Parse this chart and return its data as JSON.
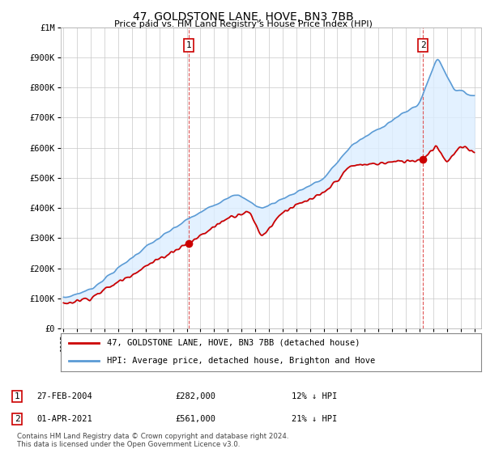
{
  "title": "47, GOLDSTONE LANE, HOVE, BN3 7BB",
  "subtitle": "Price paid vs. HM Land Registry's House Price Index (HPI)",
  "ylabel_ticks": [
    "£0",
    "£100K",
    "£200K",
    "£300K",
    "£400K",
    "£500K",
    "£600K",
    "£700K",
    "£800K",
    "£900K",
    "£1M"
  ],
  "ytick_vals": [
    0,
    100000,
    200000,
    300000,
    400000,
    500000,
    600000,
    700000,
    800000,
    900000,
    1000000
  ],
  "ylim": [
    0,
    1000000
  ],
  "xlim_start": 1994.8,
  "xlim_end": 2025.5,
  "hpi_color": "#5b9bd5",
  "price_color": "#cc0000",
  "fill_color": "#ddeeff",
  "grid_color": "#c8c8c8",
  "background_color": "#ffffff",
  "legend_label_price": "47, GOLDSTONE LANE, HOVE, BN3 7BB (detached house)",
  "legend_label_hpi": "HPI: Average price, detached house, Brighton and Hove",
  "annotation1_label": "1",
  "annotation1_text": "27-FEB-2004",
  "annotation1_price": "£282,000",
  "annotation1_hpi": "12% ↓ HPI",
  "annotation2_label": "2",
  "annotation2_text": "01-APR-2021",
  "annotation2_price": "£561,000",
  "annotation2_hpi": "21% ↓ HPI",
  "footnote": "Contains HM Land Registry data © Crown copyright and database right 2024.\nThis data is licensed under the Open Government Licence v3.0.",
  "marker1_x": 2004.15,
  "marker1_y": 282000,
  "marker2_x": 2021.25,
  "marker2_y": 561000,
  "vline_color": "#dd4444",
  "vline_style": "--",
  "annot_box_color": "#cc0000"
}
